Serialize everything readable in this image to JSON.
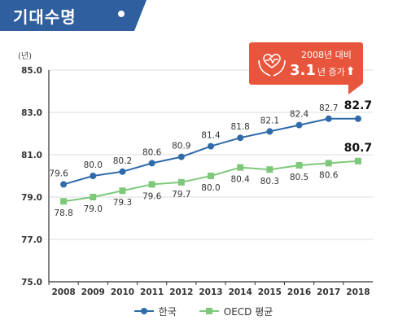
{
  "header": {
    "title": "기대수명"
  },
  "badge": {
    "line1": "2008년 대비",
    "value": "3.1",
    "unit": "년 증가",
    "arrow": "⬆",
    "icon": "heart-in-hands-icon",
    "color": "#e8553d"
  },
  "chart_data": {
    "type": "line",
    "unit_label": "(년)",
    "categories": [
      "2008",
      "2009",
      "2010",
      "2011",
      "2012",
      "2013",
      "2014",
      "2015",
      "2016",
      "2017",
      "2018"
    ],
    "y_ticks": [
      "85.0",
      "83.0",
      "81.0",
      "79.0",
      "77.0",
      "75.0"
    ],
    "ylim": [
      75.0,
      85.0
    ],
    "grid": "horizontal",
    "legend_position": "bottom",
    "series": [
      {
        "name": "한국",
        "color": "#2f6aa9",
        "values": [
          79.6,
          80.0,
          80.2,
          80.6,
          80.9,
          81.4,
          81.8,
          82.1,
          82.4,
          82.7,
          82.7
        ],
        "labels": [
          "79.6",
          "80.0",
          "80.2",
          "80.6",
          "80.9",
          "81.4",
          "81.8",
          "82.1",
          "82.4",
          "82.7",
          "82.7"
        ]
      },
      {
        "name": "OECD 평균",
        "color": "#7ec87a",
        "values": [
          78.8,
          79.0,
          79.3,
          79.6,
          79.7,
          80.0,
          80.4,
          80.3,
          80.5,
          80.6,
          80.7
        ],
        "labels": [
          "78.8",
          "79.0",
          "79.3",
          "79.6",
          "79.7",
          "80.0",
          "80.4",
          "80.3",
          "80.5",
          "80.6",
          "80.7"
        ]
      }
    ]
  }
}
